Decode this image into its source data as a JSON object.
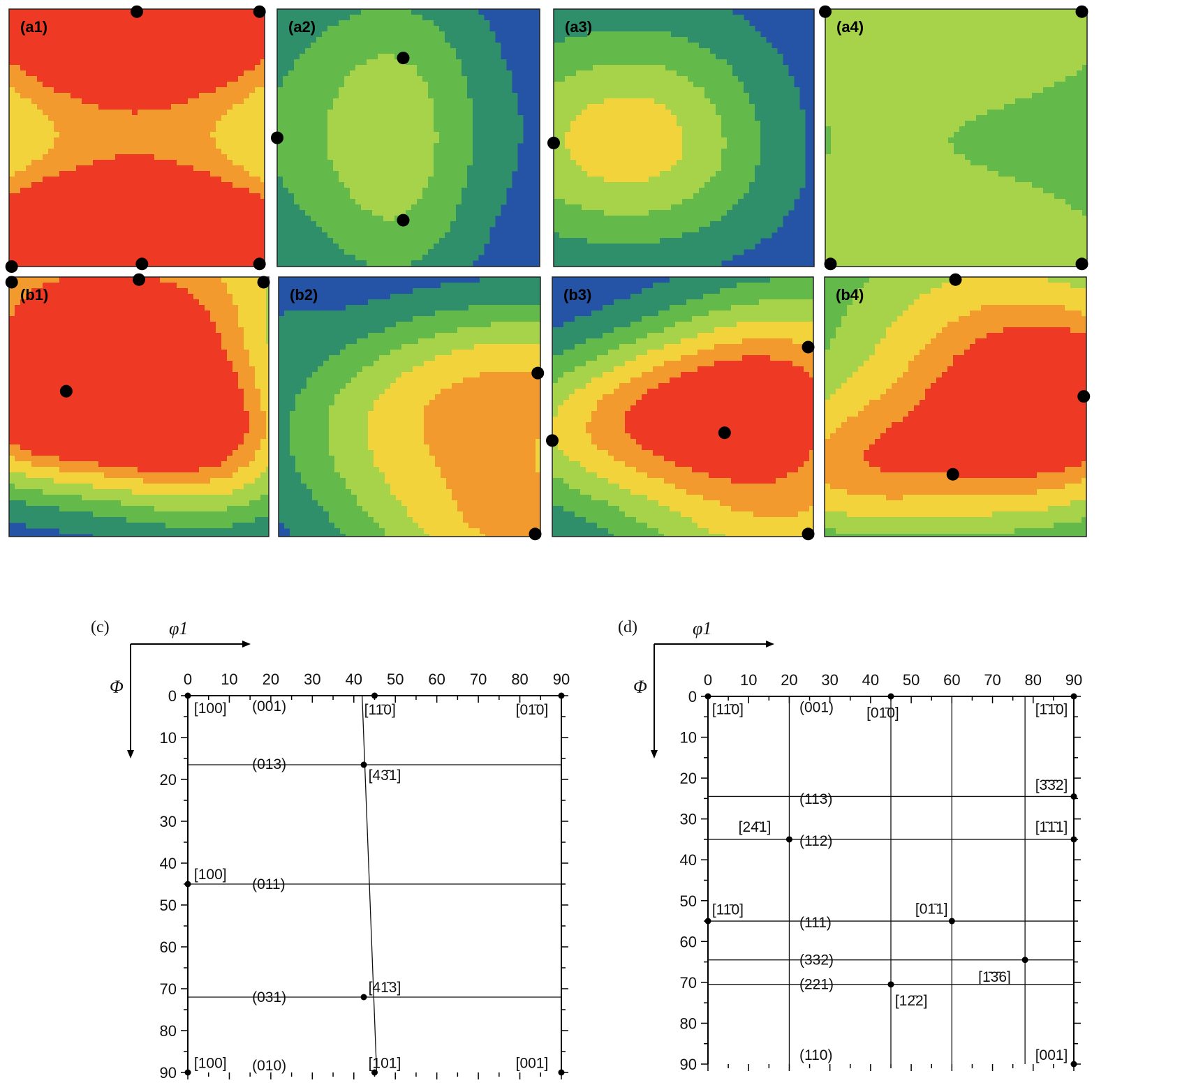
{
  "maps": {
    "type": "heatmap",
    "colors": {
      "background": "#2553a6",
      "levels": [
        "#2f8f6a",
        "#63b94a",
        "#a7d34a",
        "#f3d33b",
        "#f39a2e",
        "#ee3a25"
      ],
      "dot": "#000000"
    },
    "panels": [
      {
        "label": "(a1)",
        "hot": [
          [
            0.5,
            0.0,
            0.7,
            0.75,
            0.5
          ],
          [
            0.98,
            0.0,
            0.55,
            0.7,
            0.4
          ],
          [
            0.02,
            0.0,
            0.5,
            0.6,
            0.4
          ],
          [
            0.5,
            1.0,
            0.75,
            0.8,
            0.55
          ],
          [
            0.02,
            1.0,
            0.5,
            0.7,
            0.45
          ],
          [
            0.98,
            1.0,
            0.45,
            0.7,
            0.45
          ],
          [
            0.23,
            0.99,
            0.3,
            0.7,
            0.2
          ],
          [
            0.78,
            0.99,
            0.3,
            0.65,
            0.2
          ]
        ],
        "dots": [
          [
            0.5,
            0.01
          ],
          [
            0.98,
            0.01
          ],
          [
            0.01,
            1.0
          ],
          [
            0.52,
            0.99
          ],
          [
            0.98,
            0.99
          ]
        ]
      },
      {
        "label": "(a2)",
        "hot": [
          [
            0.0,
            0.5,
            0.32,
            0.75,
            0.65
          ],
          [
            0.48,
            0.19,
            0.3,
            0.4,
            0.45
          ],
          [
            0.48,
            0.8,
            0.3,
            0.36,
            0.45
          ],
          [
            1.0,
            0.5,
            0.06,
            0.3,
            0.3
          ],
          [
            0.37,
            0.49,
            0.05,
            0.15,
            0.12
          ]
        ],
        "dots": [
          [
            0.0,
            0.5
          ],
          [
            0.48,
            0.19
          ],
          [
            0.48,
            0.82
          ]
        ]
      },
      {
        "label": "(a3)",
        "hot": [
          [
            0.0,
            0.5,
            0.34,
            0.8,
            0.65
          ],
          [
            0.47,
            0.2,
            0.18,
            0.55,
            0.35
          ],
          [
            0.47,
            0.73,
            0.2,
            0.6,
            0.35
          ],
          [
            0.3,
            0.5,
            0.25,
            0.5,
            0.3
          ]
        ],
        "dots": [
          [
            0.0,
            0.52
          ]
        ]
      },
      {
        "label": "(a4)",
        "hot": [
          [
            0.0,
            0.0,
            0.5,
            0.75,
            0.55
          ],
          [
            1.0,
            0.0,
            0.45,
            0.7,
            0.5
          ],
          [
            0.0,
            1.0,
            0.5,
            0.75,
            0.6
          ],
          [
            1.0,
            1.0,
            0.45,
            0.7,
            0.55
          ]
        ],
        "dots": [
          [
            0.0,
            0.01
          ],
          [
            0.98,
            0.01
          ],
          [
            0.02,
            0.99
          ],
          [
            0.98,
            0.99
          ]
        ]
      },
      {
        "label": "(b1)",
        "hot": [
          [
            0.5,
            0.0,
            0.55,
            0.5,
            0.5
          ],
          [
            0.98,
            0.0,
            0.35,
            0.4,
            0.4
          ],
          [
            0.0,
            0.0,
            0.3,
            0.35,
            0.3
          ],
          [
            0.22,
            0.42,
            0.8,
            0.6,
            0.42
          ],
          [
            0.5,
            0.56,
            0.3,
            0.45,
            0.3
          ],
          [
            0.86,
            0.68,
            0.55,
            0.45,
            0.35
          ],
          [
            0.0,
            0.6,
            0.25,
            0.3,
            0.25
          ]
        ],
        "dots": [
          [
            0.5,
            0.01
          ],
          [
            0.98,
            0.02
          ],
          [
            0.01,
            0.02
          ],
          [
            0.22,
            0.44
          ]
        ]
      },
      {
        "label": "(b2)",
        "hot": [
          [
            1.0,
            0.38,
            0.7,
            0.8,
            0.35
          ],
          [
            1.0,
            1.0,
            0.75,
            0.7,
            0.35
          ],
          [
            0.4,
            0.65,
            0.35,
            0.6,
            0.35
          ],
          [
            0.0,
            0.1,
            0.1,
            0.2,
            0.15
          ]
        ],
        "dots": [
          [
            0.99,
            0.37
          ],
          [
            0.98,
            0.99
          ]
        ]
      },
      {
        "label": "(b3)",
        "hot": [
          [
            0.98,
            0.28,
            0.5,
            0.55,
            0.4
          ],
          [
            0.67,
            0.6,
            0.45,
            0.65,
            0.42
          ],
          [
            0.0,
            0.62,
            0.32,
            0.5,
            0.3
          ],
          [
            1.0,
            1.0,
            0.55,
            0.75,
            0.45
          ],
          [
            0.42,
            0.45,
            0.3,
            0.55,
            0.3
          ]
        ],
        "dots": [
          [
            0.98,
            0.27
          ],
          [
            0.66,
            0.6
          ],
          [
            0.0,
            0.63
          ],
          [
            0.98,
            0.99
          ]
        ]
      },
      {
        "label": "(b4)",
        "hot": [
          [
            0.5,
            0.08,
            0.55,
            0.9,
            0.5
          ],
          [
            1.0,
            0.45,
            0.65,
            0.6,
            0.4
          ],
          [
            0.49,
            0.75,
            0.6,
            0.85,
            0.4
          ],
          [
            0.0,
            0.75,
            0.3,
            0.4,
            0.3
          ]
        ],
        "dots": [
          [
            0.5,
            0.01
          ],
          [
            0.99,
            0.46
          ],
          [
            0.49,
            0.76
          ]
        ]
      }
    ]
  },
  "chart_data": [
    {
      "type": "line",
      "panel": "(c)",
      "xlabel": "φ1",
      "ylabel": "Φ",
      "xlim": [
        0,
        90
      ],
      "ylim": [
        0,
        90
      ],
      "xticks": [
        "0",
        "10",
        "20",
        "30",
        "40",
        "50",
        "60",
        "70",
        "80",
        "90"
      ],
      "yticks": [
        "0",
        "10",
        "20",
        "30",
        "40",
        "50",
        "60",
        "70",
        "80",
        "90"
      ],
      "hlines": [
        {
          "y": 16.5,
          "label": "(013)"
        },
        {
          "y": 45,
          "label": "(011)"
        },
        {
          "y": 72,
          "label": "(031)"
        }
      ],
      "vlines": [
        {
          "x": [
            42.0,
            45.5
          ],
          "y": [
            0,
            90
          ]
        }
      ],
      "points": [
        {
          "x": 0,
          "y": 0
        },
        {
          "x": 45,
          "y": 0
        },
        {
          "x": 90,
          "y": 0
        },
        {
          "x": 42.4,
          "y": 16.5
        },
        {
          "x": 0,
          "y": 45
        },
        {
          "x": 42.4,
          "y": 72
        },
        {
          "x": 0,
          "y": 90
        },
        {
          "x": 45,
          "y": 90
        },
        {
          "x": 90,
          "y": 90
        }
      ],
      "annotations": [
        {
          "text": "[100]",
          "x": 1.5,
          "y": 2.8
        },
        {
          "text": "(001)",
          "x": 15.5,
          "y": 2.3
        },
        {
          "text": "[11̄0]",
          "x": 42.5,
          "y": 3.2
        },
        {
          "text": "[01̄0]",
          "x": 79,
          "y": 3.2
        },
        {
          "text": "(013)",
          "x": 15.5,
          "y": 16.2
        },
        {
          "text": "[43̄1]",
          "x": 43.5,
          "y": 18.8
        },
        {
          "text": "[100]",
          "x": 1.5,
          "y": 42.5
        },
        {
          "text": "(011)",
          "x": 15.5,
          "y": 44.8
        },
        {
          "text": "[41̄3]",
          "x": 43.5,
          "y": 69.5
        },
        {
          "text": "(031)",
          "x": 15.5,
          "y": 71.8
        },
        {
          "text": "[100]",
          "x": 1.5,
          "y": 87.6
        },
        {
          "text": "(010)",
          "x": 15.5,
          "y": 88.2
        },
        {
          "text": "[101]",
          "x": 43.5,
          "y": 87.6
        },
        {
          "text": "[001]",
          "x": 79,
          "y": 87.6
        }
      ]
    },
    {
      "type": "line",
      "panel": "(d)",
      "xlabel": "φ1",
      "ylabel": "Φ",
      "xlim": [
        0,
        90
      ],
      "ylim": [
        0,
        90
      ],
      "xticks": [
        "0",
        "10",
        "20",
        "30",
        "40",
        "50",
        "60",
        "70",
        "80",
        "90"
      ],
      "yticks": [
        "0",
        "10",
        "20",
        "30",
        "40",
        "50",
        "60",
        "70",
        "80",
        "90"
      ],
      "hlines": [
        {
          "y": 24.5,
          "label": "(113)"
        },
        {
          "y": 35,
          "label": "(112)"
        },
        {
          "y": 55,
          "label": "(111)"
        },
        {
          "y": 64.5,
          "label": "(332)"
        },
        {
          "y": 70.5,
          "label": "(221)"
        }
      ],
      "vlines": [
        {
          "x": [
            20,
            20
          ],
          "y": [
            0,
            90
          ]
        },
        {
          "x": [
            45,
            45
          ],
          "y": [
            0,
            90
          ]
        },
        {
          "x": [
            60,
            60
          ],
          "y": [
            0,
            90
          ]
        },
        {
          "x": [
            78,
            78
          ],
          "y": [
            0,
            90
          ]
        }
      ],
      "points": [
        {
          "x": 0,
          "y": 0
        },
        {
          "x": 45,
          "y": 0
        },
        {
          "x": 90,
          "y": 0
        },
        {
          "x": 90,
          "y": 24.5
        },
        {
          "x": 20,
          "y": 35
        },
        {
          "x": 90,
          "y": 35
        },
        {
          "x": 0,
          "y": 55
        },
        {
          "x": 60,
          "y": 55
        },
        {
          "x": 78,
          "y": 64.5
        },
        {
          "x": 45,
          "y": 70.5
        },
        {
          "x": 90,
          "y": 90
        }
      ],
      "annotations": [
        {
          "text": "[11̄0]",
          "x": 1.0,
          "y": 3.0
        },
        {
          "text": "(001)",
          "x": 22.5,
          "y": 2.5
        },
        {
          "text": "[01̄0]",
          "x": 39,
          "y": 3.8
        },
        {
          "text": "[1̄1̄0]",
          "x": 80.5,
          "y": 3.0
        },
        {
          "text": "[3̄3̄2]",
          "x": 80.5,
          "y": 21.5
        },
        {
          "text": "(113)",
          "x": 22.5,
          "y": 24.9
        },
        {
          "text": "[24̄1]",
          "x": 7.5,
          "y": 31.8
        },
        {
          "text": "(112)",
          "x": 22.5,
          "y": 35.2
        },
        {
          "text": "[1̄1̄1]",
          "x": 80.5,
          "y": 31.8
        },
        {
          "text": "[11̄0]",
          "x": 1.0,
          "y": 52.0
        },
        {
          "text": "[01̄1]",
          "x": 51,
          "y": 51.8
        },
        {
          "text": "(111)",
          "x": 22.5,
          "y": 55.2
        },
        {
          "text": "(332)",
          "x": 22.5,
          "y": 64.3
        },
        {
          "text": "[1̄3̄6]",
          "x": 66.5,
          "y": 68.5
        },
        {
          "text": "(221)",
          "x": 22.5,
          "y": 70.3
        },
        {
          "text": "[12̄2]",
          "x": 46,
          "y": 74.3
        },
        {
          "text": "(110)",
          "x": 22.5,
          "y": 87.6
        },
        {
          "text": "[001]",
          "x": 80.5,
          "y": 87.6
        }
      ]
    }
  ]
}
